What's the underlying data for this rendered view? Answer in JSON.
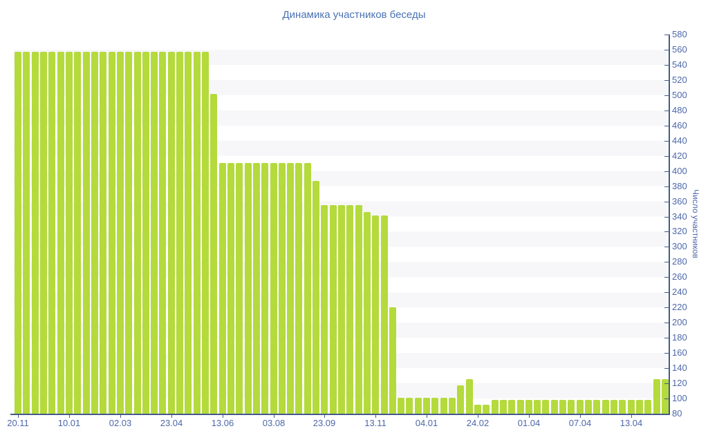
{
  "chart_data": {
    "type": "bar",
    "title": "Динамика участников беседы",
    "ylabel": "Число участников",
    "xlabel": "",
    "legend": "none",
    "grid": "horizontal-stripes",
    "ylim": [
      80,
      580
    ],
    "ytick_step": 20,
    "y_ticks": [
      580,
      560,
      540,
      520,
      500,
      480,
      460,
      440,
      420,
      400,
      380,
      360,
      340,
      320,
      300,
      280,
      260,
      240,
      220,
      200,
      180,
      160,
      140,
      120,
      100,
      80
    ],
    "x_ticks": [
      {
        "label": "20.11",
        "bar_index": 0
      },
      {
        "label": "10.01",
        "bar_index": 6
      },
      {
        "label": "02.03",
        "bar_index": 12
      },
      {
        "label": "23.04",
        "bar_index": 18
      },
      {
        "label": "13.06",
        "bar_index": 24
      },
      {
        "label": "03.08",
        "bar_index": 30
      },
      {
        "label": "23.09",
        "bar_index": 36
      },
      {
        "label": "13.11",
        "bar_index": 42
      },
      {
        "label": "04.01",
        "bar_index": 48
      },
      {
        "label": "24.02",
        "bar_index": 54
      },
      {
        "label": "01.04",
        "bar_index": 60
      },
      {
        "label": "07.04",
        "bar_index": 66
      },
      {
        "label": "13.04",
        "bar_index": 72
      }
    ],
    "values": [
      557,
      557,
      557,
      557,
      557,
      557,
      557,
      557,
      557,
      557,
      557,
      557,
      557,
      557,
      557,
      557,
      557,
      557,
      557,
      557,
      557,
      557,
      557,
      502,
      411,
      411,
      411,
      411,
      411,
      411,
      411,
      411,
      411,
      411,
      411,
      387,
      355,
      355,
      355,
      355,
      355,
      346,
      341,
      341,
      220,
      101,
      101,
      101,
      101,
      101,
      101,
      101,
      117,
      126,
      92,
      92,
      98,
      98,
      98,
      98,
      98,
      98,
      98,
      98,
      98,
      98,
      98,
      98,
      98,
      98,
      98,
      98,
      98,
      98,
      98,
      126,
      126
    ],
    "colors": {
      "bar": "#b4da3c",
      "axis_line": "#44598e",
      "tick_text": "#4c67a8",
      "title_text": "#4a72b4",
      "stripe": "#f7f7f9",
      "background": "#ffffff"
    }
  }
}
